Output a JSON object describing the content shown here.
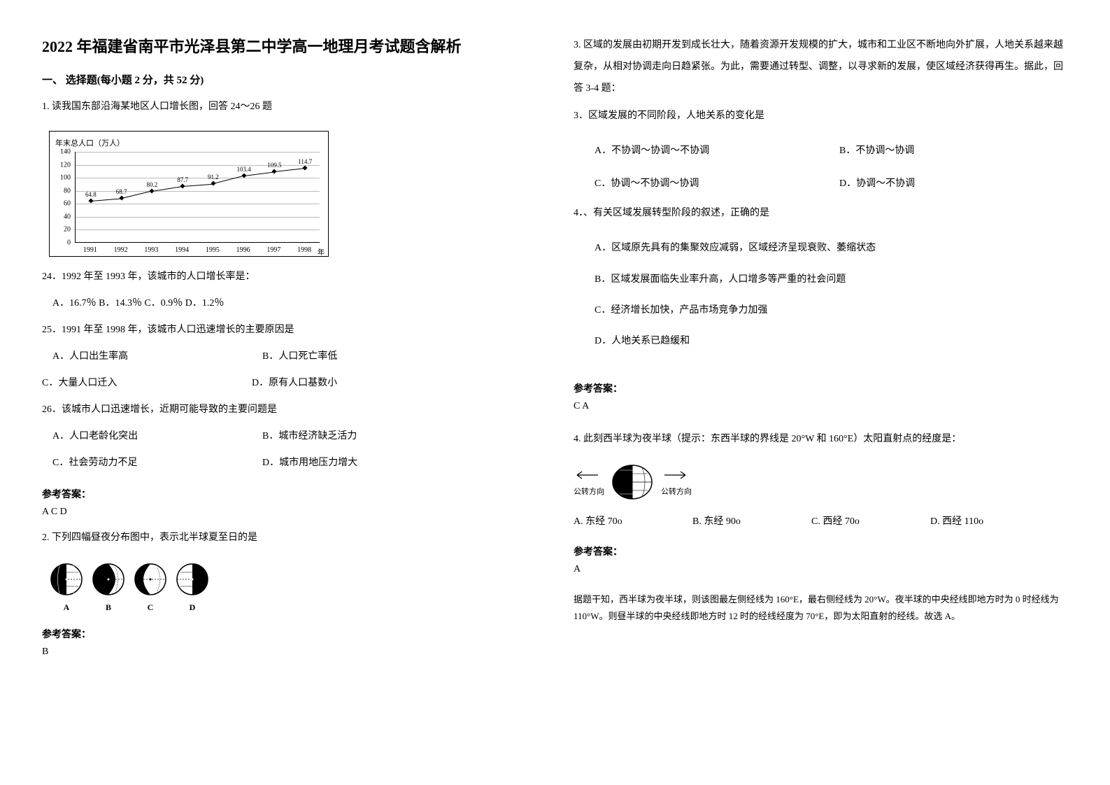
{
  "title": "2022 年福建省南平市光泽县第二中学高一地理月考试题含解析",
  "section1": "一、 选择题(每小题 2 分，共 52 分)",
  "q1": {
    "intro": "1. 读我国东部沿海某地区人口增长图，回答 24～26 题",
    "chart": {
      "title": "年末总人口（万人）",
      "ylim": [
        0,
        140
      ],
      "ytick_step": 20,
      "yticks": [
        "0",
        "20",
        "40",
        "60",
        "80",
        "100",
        "120",
        "140"
      ],
      "years": [
        "1991",
        "1992",
        "1993",
        "1994",
        "1995",
        "1996",
        "1997",
        "1998"
      ],
      "x_unit": "年",
      "values": [
        64.8,
        68.7,
        80.2,
        87.7,
        91.2,
        103.4,
        109.5,
        114.7
      ],
      "line_color": "#000000",
      "grid_color": "#bbbbbb",
      "background_color": "#ffffff"
    },
    "q24": "24．1992 年至 1993 年，该城市的人口增长率是：",
    "q24_opts": "A．16.7％    B．14.3％    C．0.9％    D．1.2％",
    "q25": "25．1991 年至 1998 年，该城市人口迅速增长的主要原因是",
    "q25_optA": "A．人口出生率高",
    "q25_optB": "B．人口死亡率低",
    "q25_optC": "C．大量人口迁入",
    "q25_optD": "D．原有人口基数小",
    "q26": "26．该城市人口迅速增长，近期可能导致的主要问题是",
    "q26_optA": "A．人口老龄化突出",
    "q26_optB": "B．城市经济缺乏活力",
    "q26_optC": "C．社会劳动力不足",
    "q26_optD": "D．城市用地压力增大",
    "answer_label": "参考答案：",
    "answer": "A  C  D"
  },
  "q2": {
    "text": "2. 下列四幅昼夜分布图中，表示北半球夏至日的是",
    "labels": [
      "A",
      "B",
      "C",
      "D"
    ],
    "answer_label": "参考答案：",
    "answer": "B"
  },
  "q3": {
    "intro": "3. 区域的发展由初期开发到成长壮大，随着资源开发规模的扩大，城市和工业区不断地向外扩展，人地关系越来越复杂，从相对协调走向日趋紧张。为此，需要通过转型、调整，以寻求新的发展，使区域经济获得再生。据此，回答 3-4 题：",
    "q3_text": "3．区域发展的不同阶段，人地关系的变化是",
    "q3_optA": "A．不协调～协调～不协调",
    "q3_optB": "B．不协调～协调",
    "q3_optC": "C．协调～不协调～协调",
    "q3_optD": "D．协调～不协调",
    "q4_text": "4．、有关区域发展转型阶段的叙述，正确的是",
    "q4_optA": "A．区域原先具有的集聚效应减弱，区域经济呈现衰败、萎缩状态",
    "q4_optB": "B．区域发展面临失业率升高，人口增多等严重的社会问题",
    "q4_optC": "C．经济增长加快，产品市场竞争力加强",
    "q4_optD": "D．人地关系已趋缓和",
    "answer_label": "参考答案：",
    "answer": "C  A"
  },
  "q4": {
    "text": "4. 此刻西半球为夜半球（提示：东西半球的界线是 20°W 和 160°E）太阳直射点的经度是：",
    "arrow_left": "公转方向",
    "arrow_right": "公转方向",
    "optA": "A.  东经 70o",
    "optB": "B.  东经 90o",
    "optC": "C.  西经 70o",
    "optD": "D.  西经 110o",
    "answer_label": "参考答案：",
    "answer": "A",
    "explanation": "据题干知，西半球为夜半球，则该图最左侧经线为 160°E，最右侧经线为 20°W。夜半球的中央经线即地方时为 0 时经线为 110°W。则昼半球的中央经线即地方时 12 时的经线经度为 70°E，即为太阳直射的经线。故选 A。"
  }
}
